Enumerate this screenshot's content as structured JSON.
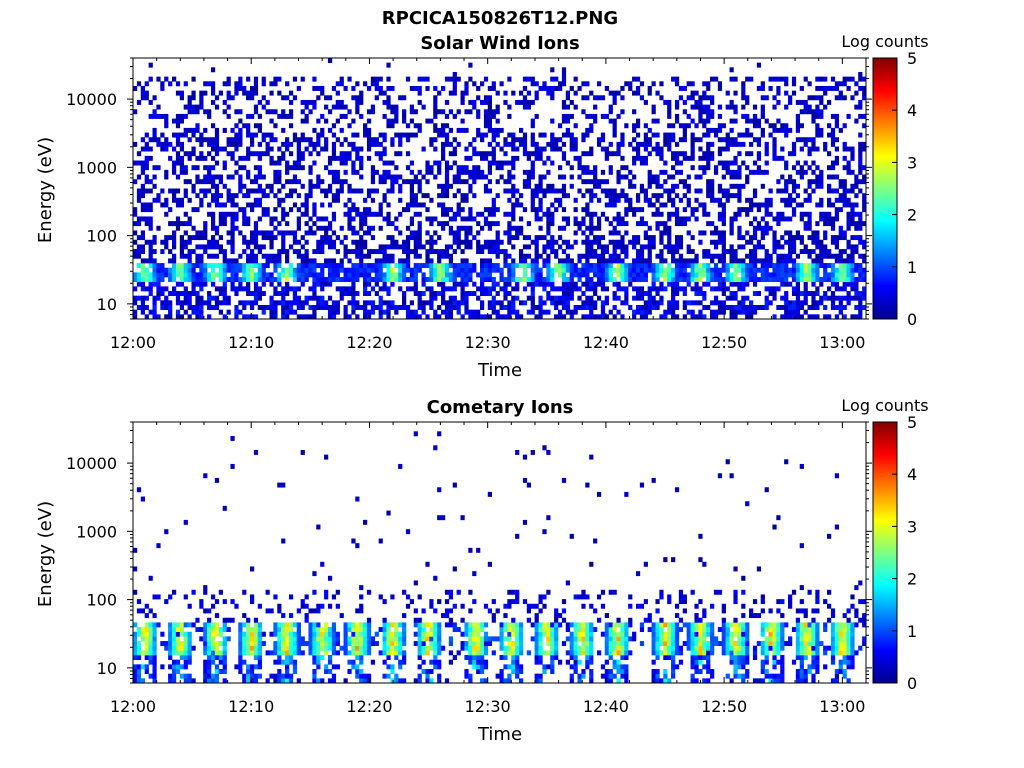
{
  "figure": {
    "suptitle": "RPCICA150826T12.PNG"
  },
  "colormap": {
    "name": "jet",
    "stops": [
      "#00008f",
      "#0000ff",
      "#00ffff",
      "#ffff00",
      "#ff0000",
      "#800000"
    ]
  },
  "chart_data": [
    {
      "type": "heatmap",
      "title": "Solar Wind Ions",
      "xlabel": "Time",
      "ylabel": "Energy (eV)",
      "y_scale": "log",
      "xlim": [
        "12:00",
        "13:02"
      ],
      "ylim": [
        6,
        40000
      ],
      "x_ticks": [
        "12:00",
        "12:10",
        "12:20",
        "12:30",
        "12:40",
        "12:50",
        "13:00"
      ],
      "y_ticks": [
        "10",
        "100",
        "1000",
        "10000"
      ],
      "colorbar": {
        "label": "Log counts",
        "range": [
          0,
          5
        ],
        "ticks": [
          "0",
          "1",
          "2",
          "3",
          "4",
          "5"
        ]
      },
      "description_values": {
        "dominant_band_energy_eV": [
          20,
          40
        ],
        "band_peak_log_counts": 2.8,
        "background_log_counts": 0.3,
        "background_extent_eV": [
          6,
          20000
        ],
        "bright_bursts_times": [
          "12:01",
          "12:04",
          "12:07",
          "12:10",
          "12:13",
          "12:22",
          "12:26",
          "12:33",
          "12:36",
          "12:41",
          "12:45",
          "12:48",
          "12:51",
          "12:57",
          "13:00"
        ]
      }
    },
    {
      "type": "heatmap",
      "title": "Cometary Ions",
      "xlabel": "Time",
      "ylabel": "Energy (eV)",
      "y_scale": "log",
      "xlim": [
        "12:00",
        "13:02"
      ],
      "ylim": [
        6,
        40000
      ],
      "x_ticks": [
        "12:00",
        "12:10",
        "12:20",
        "12:30",
        "12:40",
        "12:50",
        "13:00"
      ],
      "y_ticks": [
        "10",
        "100",
        "1000",
        "10000"
      ],
      "colorbar": {
        "label": "Log counts",
        "range": [
          0,
          5
        ],
        "ticks": [
          "0",
          "1",
          "2",
          "3",
          "4",
          "5"
        ]
      },
      "description_values": {
        "dominant_band_energy_eV": [
          15,
          45
        ],
        "band_peak_log_counts": 3.8,
        "sparse_dots_extent_eV": [
          100,
          30000
        ],
        "burst_times": [
          "12:01",
          "12:04",
          "12:07",
          "12:10",
          "12:13",
          "12:16",
          "12:19",
          "12:22",
          "12:25",
          "12:29",
          "12:32",
          "12:35",
          "12:38",
          "12:41",
          "12:45",
          "12:48",
          "12:51",
          "12:54",
          "12:57",
          "13:00"
        ]
      }
    }
  ]
}
